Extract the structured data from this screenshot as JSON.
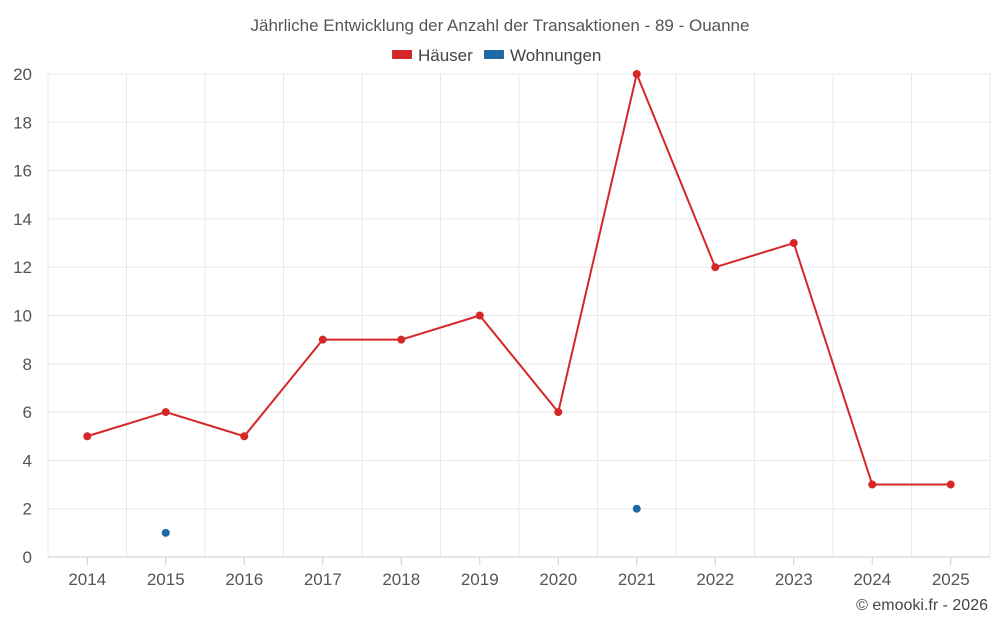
{
  "chart_data": {
    "type": "line",
    "title": "Jährliche Entwicklung der Anzahl der Transaktionen - 89 - Ouanne",
    "categories": [
      "2014",
      "2015",
      "2016",
      "2017",
      "2018",
      "2019",
      "2020",
      "2021",
      "2022",
      "2023",
      "2024",
      "2025"
    ],
    "series": [
      {
        "name": "Häuser",
        "color": "#d62728",
        "values": [
          5,
          6,
          5,
          9,
          9,
          10,
          6,
          20,
          12,
          13,
          3,
          3
        ]
      },
      {
        "name": "Wohnungen",
        "color": "#1f6aa5",
        "values": [
          null,
          1,
          null,
          null,
          null,
          null,
          null,
          2,
          null,
          null,
          null,
          null
        ]
      }
    ],
    "ylim": [
      0,
      20
    ],
    "yticks": [
      0,
      2,
      4,
      6,
      8,
      10,
      12,
      14,
      16,
      18,
      20
    ],
    "xlabel": "",
    "ylabel": "",
    "grid": true,
    "legend_position": "top-center"
  },
  "credit": "© emooki.fr - 2026"
}
